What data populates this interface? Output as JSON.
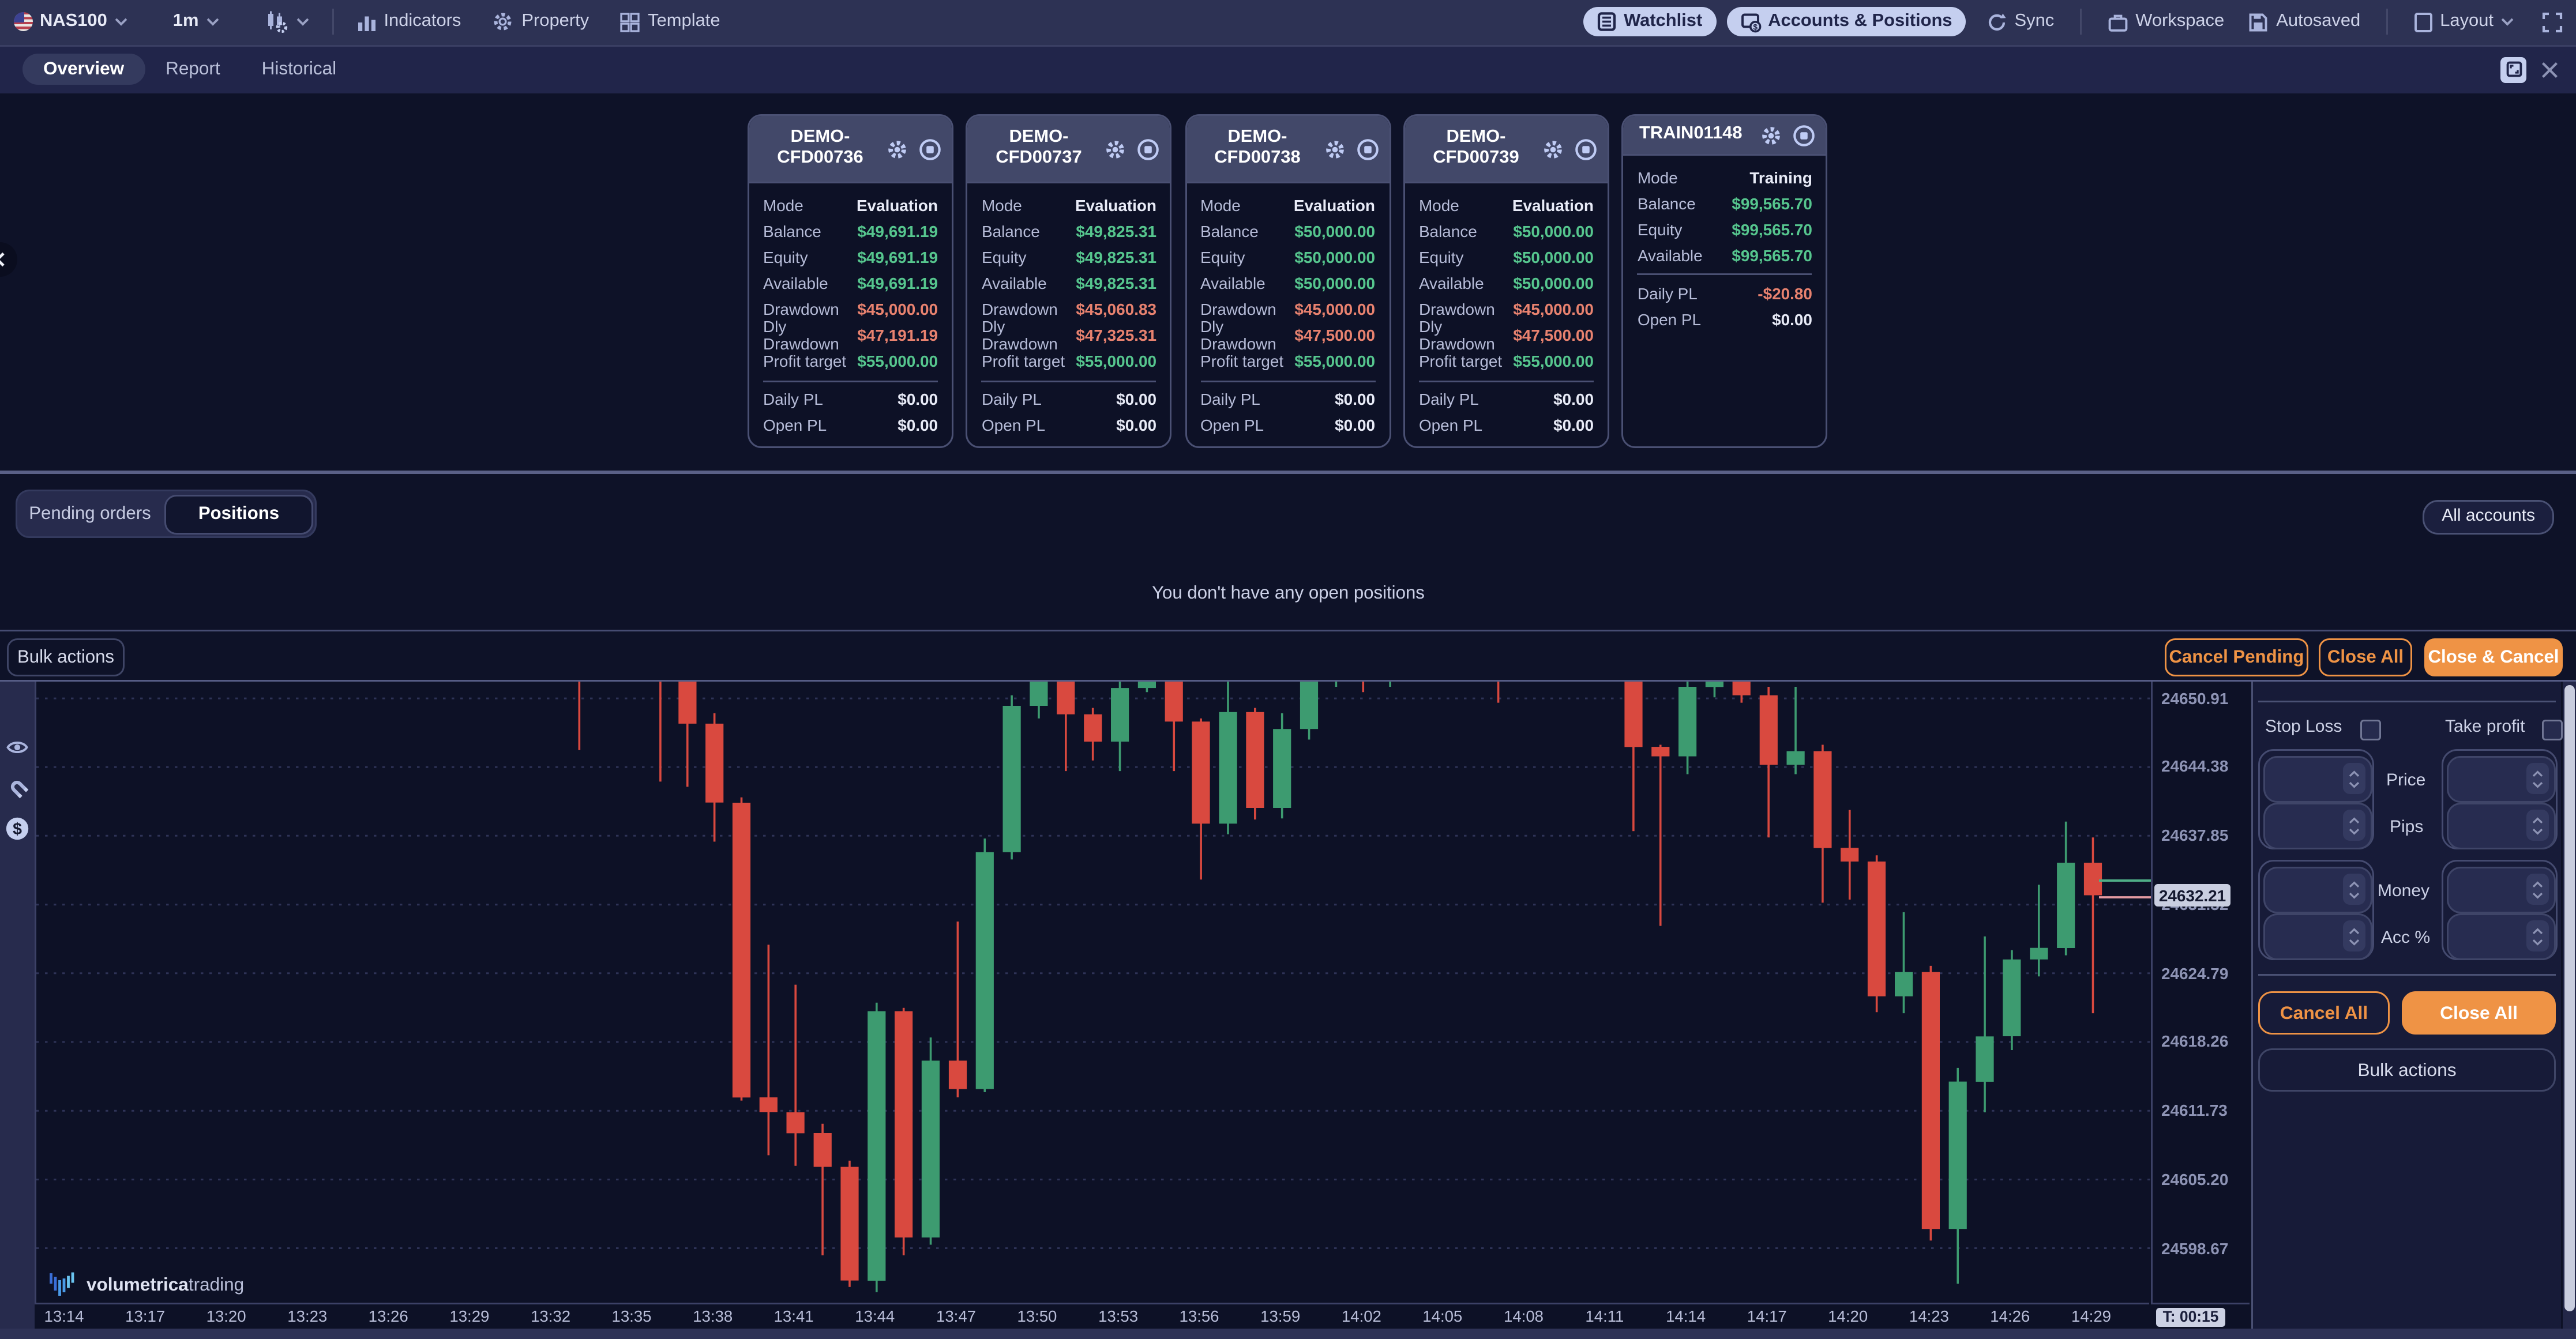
{
  "toolbar": {
    "symbol": "NAS100",
    "timeframe": "1m",
    "indicators_label": "Indicators",
    "property_label": "Property",
    "template_label": "Template",
    "watchlist_label": "Watchlist",
    "accounts_positions_label": "Accounts & Positions",
    "sync_label": "Sync",
    "workspace_label": "Workspace",
    "autosaved_label": "Autosaved",
    "layout_label": "Layout"
  },
  "tabs": {
    "overview": "Overview",
    "report": "Report",
    "historical": "Historical"
  },
  "accounts": [
    {
      "title_line1": "DEMO-",
      "title_line2": "CFD00736",
      "rows": [
        {
          "label": "Mode",
          "value": "Evaluation",
          "cls": "white"
        },
        {
          "label": "Balance",
          "value": "$49,691.19",
          "cls": "green"
        },
        {
          "label": "Equity",
          "value": "$49,691.19",
          "cls": "green"
        },
        {
          "label": "Available",
          "value": "$49,691.19",
          "cls": "green"
        },
        {
          "label": "Drawdown",
          "value": "$45,000.00",
          "cls": "red"
        },
        {
          "label": "Dly Drawdown",
          "value": "$47,191.19",
          "cls": "red"
        },
        {
          "label": "Profit target",
          "value": "$55,000.00",
          "cls": "green"
        },
        {
          "label": "Daily PL",
          "value": "$0.00",
          "cls": "white",
          "divider_before": true
        },
        {
          "label": "Open PL",
          "value": "$0.00",
          "cls": "white"
        }
      ]
    },
    {
      "title_line1": "DEMO-",
      "title_line2": "CFD00737",
      "rows": [
        {
          "label": "Mode",
          "value": "Evaluation",
          "cls": "white"
        },
        {
          "label": "Balance",
          "value": "$49,825.31",
          "cls": "green"
        },
        {
          "label": "Equity",
          "value": "$49,825.31",
          "cls": "green"
        },
        {
          "label": "Available",
          "value": "$49,825.31",
          "cls": "green"
        },
        {
          "label": "Drawdown",
          "value": "$45,060.83",
          "cls": "red"
        },
        {
          "label": "Dly Drawdown",
          "value": "$47,325.31",
          "cls": "red"
        },
        {
          "label": "Profit target",
          "value": "$55,000.00",
          "cls": "green"
        },
        {
          "label": "Daily PL",
          "value": "$0.00",
          "cls": "white",
          "divider_before": true
        },
        {
          "label": "Open PL",
          "value": "$0.00",
          "cls": "white"
        }
      ]
    },
    {
      "title_line1": "DEMO-",
      "title_line2": "CFD00738",
      "rows": [
        {
          "label": "Mode",
          "value": "Evaluation",
          "cls": "white"
        },
        {
          "label": "Balance",
          "value": "$50,000.00",
          "cls": "green"
        },
        {
          "label": "Equity",
          "value": "$50,000.00",
          "cls": "green"
        },
        {
          "label": "Available",
          "value": "$50,000.00",
          "cls": "green"
        },
        {
          "label": "Drawdown",
          "value": "$45,000.00",
          "cls": "red"
        },
        {
          "label": "Dly Drawdown",
          "value": "$47,500.00",
          "cls": "red"
        },
        {
          "label": "Profit target",
          "value": "$55,000.00",
          "cls": "green"
        },
        {
          "label": "Daily PL",
          "value": "$0.00",
          "cls": "white",
          "divider_before": true
        },
        {
          "label": "Open PL",
          "value": "$0.00",
          "cls": "white"
        }
      ]
    },
    {
      "title_line1": "DEMO-",
      "title_line2": "CFD00739",
      "rows": [
        {
          "label": "Mode",
          "value": "Evaluation",
          "cls": "white"
        },
        {
          "label": "Balance",
          "value": "$50,000.00",
          "cls": "green"
        },
        {
          "label": "Equity",
          "value": "$50,000.00",
          "cls": "green"
        },
        {
          "label": "Available",
          "value": "$50,000.00",
          "cls": "green"
        },
        {
          "label": "Drawdown",
          "value": "$45,000.00",
          "cls": "red"
        },
        {
          "label": "Dly Drawdown",
          "value": "$47,500.00",
          "cls": "red"
        },
        {
          "label": "Profit target",
          "value": "$55,000.00",
          "cls": "green"
        },
        {
          "label": "Daily PL",
          "value": "$0.00",
          "cls": "white",
          "divider_before": true
        },
        {
          "label": "Open PL",
          "value": "$0.00",
          "cls": "white"
        }
      ]
    },
    {
      "title_line1": "TRAIN01148",
      "rows": [
        {
          "label": "Mode",
          "value": "Training",
          "cls": "white"
        },
        {
          "label": "Balance",
          "value": "$99,565.70",
          "cls": "green"
        },
        {
          "label": "Equity",
          "value": "$99,565.70",
          "cls": "green"
        },
        {
          "label": "Available",
          "value": "$99,565.70",
          "cls": "green"
        },
        {
          "label": "Daily PL",
          "value": "-$20.80",
          "cls": "red",
          "divider_before": true
        },
        {
          "label": "Open PL",
          "value": "$0.00",
          "cls": "white"
        }
      ]
    }
  ],
  "positions_section": {
    "pending_tab": "Pending orders",
    "positions_tab": "Positions",
    "all_accounts": "All accounts",
    "empty_message": "You don't have any open positions"
  },
  "actions_row": {
    "bulk_actions": "Bulk actions",
    "cancel_pending": "Cancel Pending",
    "close_all": "Close All",
    "close_cancel": "Close & Cancel"
  },
  "order_panel": {
    "stop_loss": "Stop Loss",
    "take_profit": "Take profit",
    "price": "Price",
    "pips": "Pips",
    "money": "Money",
    "acc_pct": "Acc %",
    "cancel_all": "Cancel All",
    "close_all": "Close All",
    "bulk_actions": "Bulk actions"
  },
  "watermark": {
    "brand_bold": "volumetrica",
    "brand_light": "trading"
  },
  "colors": {
    "accent_light_blue": "#c5cfef",
    "positive_green": "#56c68e",
    "negative_red": "#e8826f",
    "action_orange": "#ef9345",
    "candle_up": "#3d9b70",
    "candle_down": "#d9493f",
    "panel_bg": "#171b38",
    "page_bg": "#0e1228"
  },
  "chart_data": {
    "type": "candlestick",
    "symbol": "NAS100",
    "timeframe": "1m",
    "title": "NAS100 1m candlestick chart",
    "grid": true,
    "visible_price_range": [
      24593.5,
      24652.5
    ],
    "price_axis_ticks": [
      24650.91,
      24644.38,
      24637.85,
      24631.32,
      24624.79,
      24618.26,
      24611.73,
      24605.2,
      24598.67
    ],
    "current_price": 24632.21,
    "ask_price": 24633.6,
    "bid_price": 24632.0,
    "countdown": "T: 00:15",
    "time_labels": [
      "13:14",
      "13:17",
      "13:20",
      "13:23",
      "13:26",
      "13:29",
      "13:32",
      "13:35",
      "13:38",
      "13:41",
      "13:44",
      "13:47",
      "13:50",
      "13:53",
      "13:56",
      "13:59",
      "14:02",
      "14:05",
      "14:08",
      "14:11",
      "14:14",
      "14:17",
      "14:20",
      "14:23",
      "14:26",
      "14:29"
    ],
    "first_candle_minute_offset": 19,
    "candles": [
      [
        "13:33",
        24654.0,
        24656.0,
        24646.0,
        24653.0
      ],
      [
        "13:34",
        24653.0,
        24656.5,
        24652.5,
        24655.0
      ],
      [
        "13:35",
        24655.0,
        24657.0,
        24654.0,
        24656.0
      ],
      [
        "13:36",
        24656.0,
        24657.0,
        24643.0,
        24653.5
      ],
      [
        "13:37",
        24653.5,
        24654.0,
        24642.5,
        24648.5
      ],
      [
        "13:38",
        24648.5,
        24649.5,
        24637.3,
        24641.0
      ],
      [
        "13:39",
        24641.0,
        24641.5,
        24612.7,
        24613.0
      ],
      [
        "13:40",
        24613.0,
        24627.5,
        24607.5,
        24611.6
      ],
      [
        "13:41",
        24611.6,
        24623.7,
        24606.5,
        24609.6
      ],
      [
        "13:42",
        24609.6,
        24610.5,
        24598.0,
        24606.4
      ],
      [
        "13:43",
        24606.4,
        24607.0,
        24595.0,
        24595.6
      ],
      [
        "13:44",
        24595.6,
        24622.0,
        24594.5,
        24621.2
      ],
      [
        "13:45",
        24621.2,
        24621.5,
        24598.0,
        24599.7
      ],
      [
        "13:46",
        24599.7,
        24618.7,
        24599.0,
        24616.5
      ],
      [
        "13:47",
        24616.5,
        24629.7,
        24613.0,
        24613.8
      ],
      [
        "13:48",
        24613.8,
        24637.6,
        24613.5,
        24636.3
      ],
      [
        "13:49",
        24636.3,
        24651.2,
        24635.6,
        24650.2
      ],
      [
        "13:50",
        24650.2,
        24653.0,
        24649.0,
        24652.5
      ],
      [
        "13:51",
        24652.5,
        24653.0,
        24644.0,
        24649.4
      ],
      [
        "13:52",
        24649.4,
        24650.0,
        24645.0,
        24646.8
      ],
      [
        "13:53",
        24646.8,
        24653.0,
        24644.0,
        24651.9
      ],
      [
        "13:54",
        24651.9,
        24655.0,
        24651.5,
        24654.0
      ],
      [
        "13:55",
        24654.0,
        24654.5,
        24644.0,
        24648.7
      ],
      [
        "13:56",
        24648.7,
        24649.0,
        24633.7,
        24639.0
      ],
      [
        "13:57",
        24639.0,
        24652.5,
        24638.0,
        24649.6
      ],
      [
        "13:58",
        24649.6,
        24650.0,
        24639.4,
        24640.5
      ],
      [
        "13:59",
        24640.5,
        24649.5,
        24639.5,
        24648.0
      ],
      [
        "14:00",
        24648.0,
        24655.0,
        24647.0,
        24654.0
      ],
      [
        "14:01",
        24654.0,
        24656.0,
        24652.0,
        24655.0
      ],
      [
        "14:02",
        24655.0,
        24656.0,
        24651.5,
        24653.0
      ],
      [
        "14:03",
        24653.0,
        24655.5,
        24652.0,
        24654.5
      ],
      [
        "14:04",
        24654.5,
        24656.0,
        24653.0,
        24655.5
      ],
      [
        "14:05",
        24655.5,
        24657.0,
        24654.0,
        24656.0
      ],
      [
        "14:06",
        24656.0,
        24657.5,
        24654.5,
        24655.0
      ],
      [
        "14:07",
        24655.0,
        24655.5,
        24650.5,
        24653.5
      ],
      [
        "14:08",
        24653.5,
        24655.0,
        24652.5,
        24654.5
      ],
      [
        "14:09",
        24654.5,
        24656.0,
        24653.5,
        24655.0
      ],
      [
        "14:10",
        24655.0,
        24656.5,
        24653.0,
        24654.0
      ],
      [
        "14:11",
        24654.0,
        24655.5,
        24652.5,
        24653.0
      ],
      [
        "14:12",
        24653.0,
        24653.5,
        24638.3,
        24646.3
      ],
      [
        "14:13",
        24646.3,
        24646.5,
        24629.3,
        24645.4
      ],
      [
        "14:14",
        24645.4,
        24653.0,
        24643.7,
        24652.0
      ],
      [
        "14:15",
        24652.0,
        24655.0,
        24651.0,
        24654.0
      ],
      [
        "14:16",
        24654.0,
        24654.5,
        24650.5,
        24651.2
      ],
      [
        "14:17",
        24651.2,
        24652.0,
        24637.7,
        24644.6
      ],
      [
        "14:18",
        24644.6,
        24652.0,
        24643.7,
        24645.9
      ],
      [
        "14:19",
        24645.9,
        24646.5,
        24631.5,
        24636.7
      ],
      [
        "14:20",
        24636.7,
        24640.3,
        24631.8,
        24635.4
      ],
      [
        "14:21",
        24635.4,
        24636.0,
        24621.1,
        24622.6
      ],
      [
        "14:22",
        24622.6,
        24630.6,
        24621.0,
        24624.9
      ],
      [
        "14:23",
        24624.9,
        24625.5,
        24599.4,
        24600.5
      ],
      [
        "14:24",
        24600.5,
        24615.8,
        24595.3,
        24614.5
      ],
      [
        "14:25",
        24614.5,
        24628.3,
        24611.6,
        24618.8
      ],
      [
        "14:26",
        24618.8,
        24627.0,
        24617.5,
        24626.1
      ],
      [
        "14:27",
        24626.1,
        24633.2,
        24624.5,
        24627.2
      ],
      [
        "14:28",
        24627.2,
        24639.2,
        24626.5,
        24635.3
      ],
      [
        "14:29",
        24635.3,
        24637.7,
        24621.0,
        24632.21
      ]
    ],
    "up_color": "#3d9b70",
    "down_color": "#d9493f",
    "legend_position": "none",
    "ylabel": "",
    "xlabel": ""
  }
}
